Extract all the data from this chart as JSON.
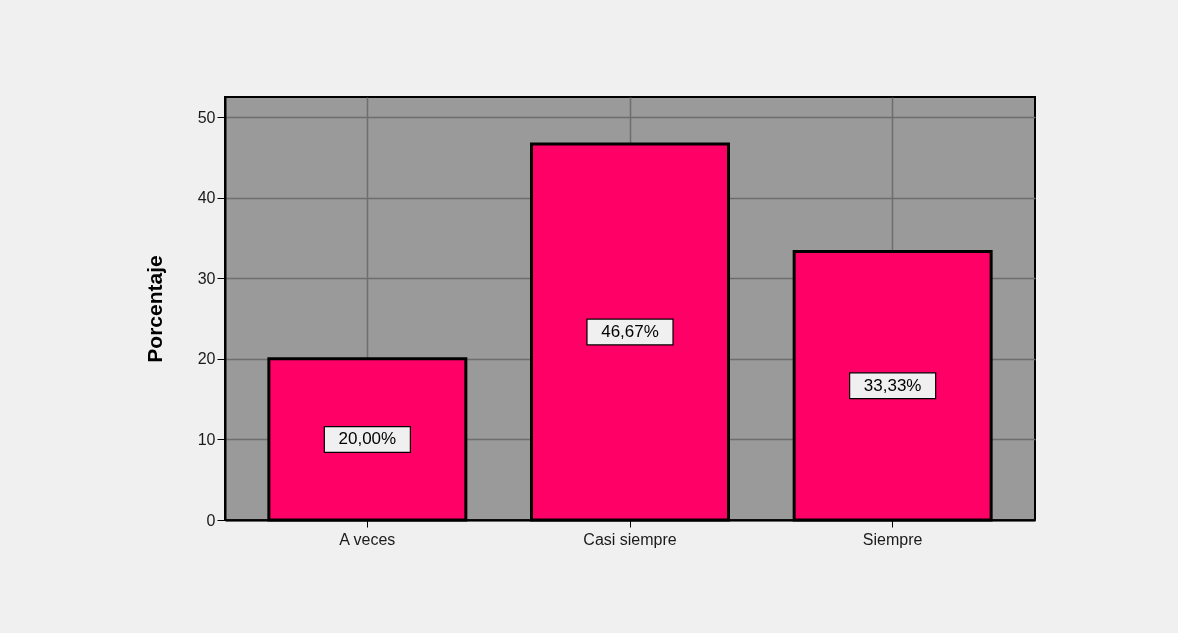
{
  "chart_data": {
    "type": "bar",
    "ylabel": "Porcentaje",
    "categories": [
      "A veces",
      "Casi siempre",
      "Siempre"
    ],
    "values": [
      20.0,
      46.67,
      33.33
    ],
    "color": "#ff0066",
    "value_labels": [
      "20,00%",
      "46,67%",
      "33,33%"
    ],
    "ylim": [
      0,
      52.5
    ],
    "yticks": [
      0,
      10,
      20,
      30,
      40,
      50
    ],
    "grid": true
  }
}
